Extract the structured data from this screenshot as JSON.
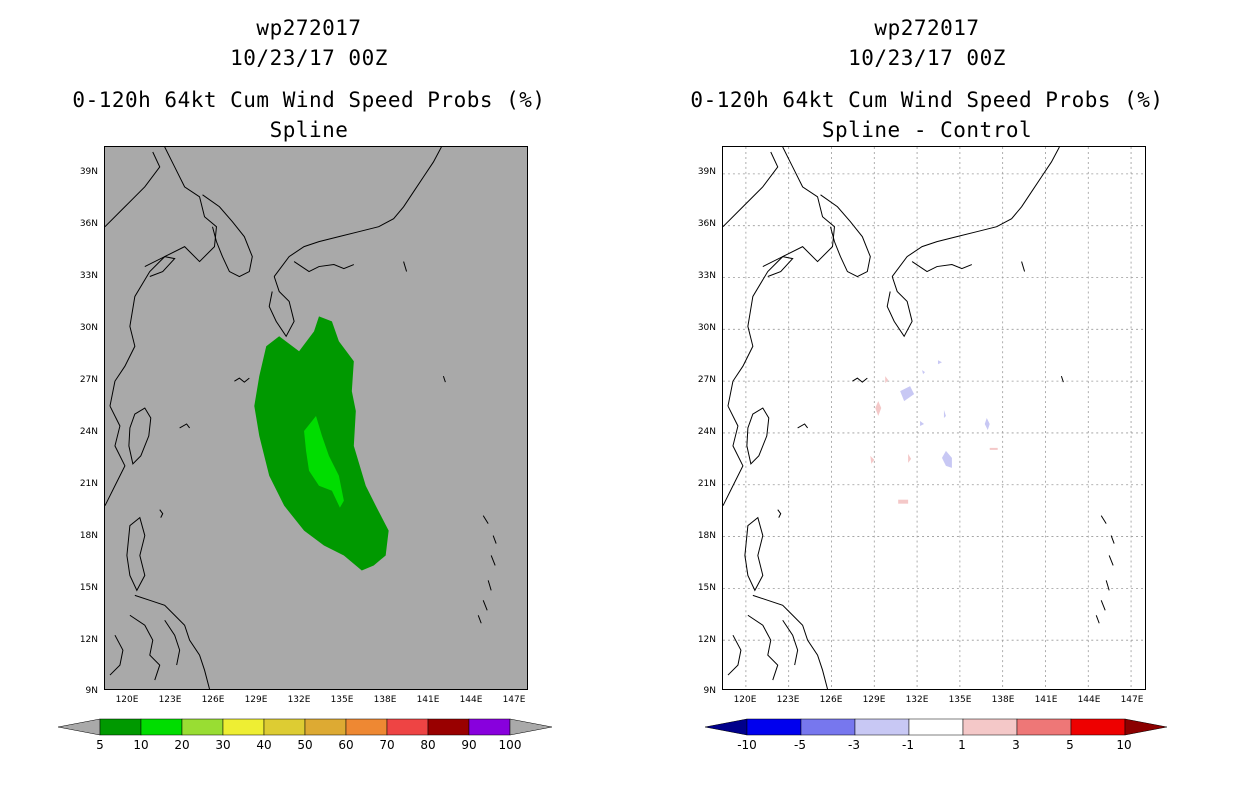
{
  "left": {
    "title_id": "wp272017",
    "title_time": "10/23/17 00Z",
    "title_product": "0-120h 64kt Cum Wind Speed Probs (%)",
    "title_method": "Spline",
    "background_color": "#a9a9a9",
    "colorbar": {
      "colors": [
        "#009900",
        "#00dd00",
        "#99dd33",
        "#eeee33",
        "#ddcc33",
        "#ddaa33",
        "#ee8833",
        "#ee4444",
        "#990000",
        "#8800dd"
      ],
      "end_colors": [
        "#a9a9a9",
        "#a9a9a9"
      ],
      "labels": [
        "5",
        "10",
        "20",
        "30",
        "40",
        "50",
        "60",
        "70",
        "80",
        "90",
        "100"
      ]
    }
  },
  "right": {
    "title_id": "wp272017",
    "title_time": "10/23/17 00Z",
    "title_product": "0-120h 64kt Cum Wind Speed Probs (%)",
    "title_method": "Spline - Control",
    "background_color": "#ffffff",
    "colorbar": {
      "colors": [
        "#0000ee",
        "#7777ee",
        "#c8c8f4",
        "#ffffff",
        "#f4c8c8",
        "#ee7777",
        "#ee0000"
      ],
      "end_colors": [
        "#00008b",
        "#8b0000"
      ],
      "labels": [
        "-10",
        "-5",
        "-3",
        "-1",
        "1",
        "3",
        "5",
        "10"
      ]
    }
  },
  "axes": {
    "lat_labels": [
      "39N",
      "36N",
      "33N",
      "30N",
      "27N",
      "24N",
      "21N",
      "18N",
      "15N",
      "12N",
      "9N"
    ],
    "lon_labels": [
      "120E",
      "123E",
      "126E",
      "129E",
      "132E",
      "135E",
      "138E",
      "141E",
      "144E",
      "147E"
    ]
  },
  "colors": {
    "prob_5": "#009900",
    "prob_10": "#00dd00",
    "diff_neg": "#c8c8f4",
    "diff_pos": "#f4c8c8"
  }
}
